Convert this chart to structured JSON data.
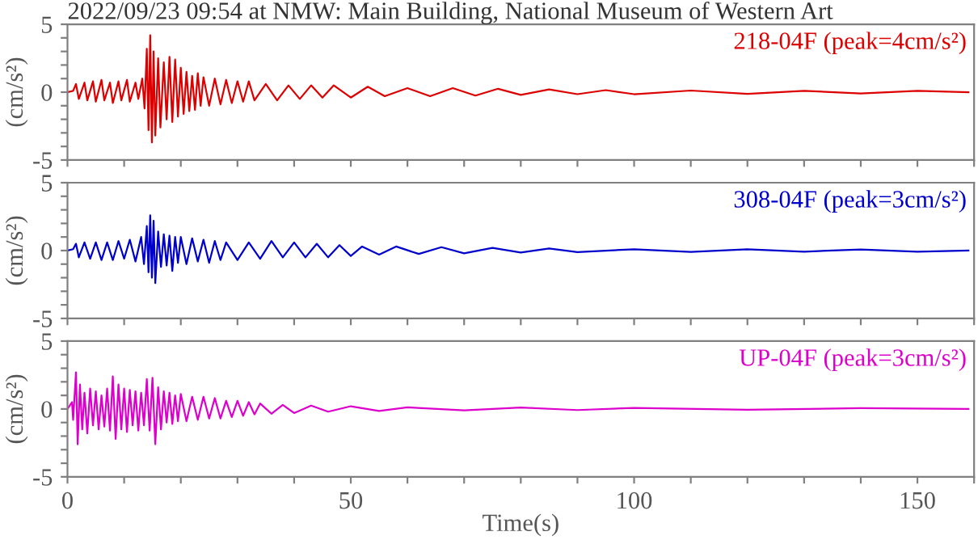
{
  "chart_data": [
    {
      "type": "line",
      "title": "2022/09/23 09:54 at NMW: Main Building, National Museum of Western Art",
      "ylabel": "(cm/s²)",
      "legend": "top right",
      "tick_labels": "y",
      "xlim": [
        0,
        160
      ],
      "ylim": [
        -5,
        5
      ],
      "xticks": [
        0,
        {
          "value": 10,
          "label": null
        },
        {
          "value": 20,
          "label": null
        },
        {
          "value": 30,
          "label": null
        },
        {
          "value": 40,
          "label": null
        },
        50,
        {
          "value": 60,
          "label": null
        },
        {
          "value": 70,
          "label": null
        },
        {
          "value": 80,
          "label": null
        },
        {
          "value": 90,
          "label": null
        },
        100,
        {
          "value": 110,
          "label": null
        },
        {
          "value": 120,
          "label": null
        },
        {
          "value": 130,
          "label": null
        },
        {
          "value": 140,
          "label": null
        },
        150,
        {
          "value": 160,
          "label": null
        }
      ],
      "yticks": [
        -5,
        {
          "value": -4,
          "label": null
        },
        {
          "value": -3,
          "label": null
        },
        {
          "value": -2,
          "label": null
        },
        {
          "value": -1,
          "label": null
        },
        0,
        {
          "value": 1,
          "label": null
        },
        {
          "value": 2,
          "label": null
        },
        {
          "value": 3,
          "label": null
        },
        {
          "value": 4,
          "label": null
        },
        5
      ],
      "series": [
        {
          "name": "218-04F (peak=4cm/s²)",
          "color": "#dd0000",
          "x": [
            0,
            1,
            1.5,
            2,
            3,
            3.5,
            4.5,
            5,
            6,
            6.5,
            7.5,
            8,
            9,
            9.5,
            10.5,
            11,
            12,
            12.5,
            13.2,
            13.6,
            14,
            14.3,
            14.6,
            14.9,
            15.2,
            15.5,
            16,
            16.4,
            17,
            17.5,
            18,
            18.5,
            19,
            19.5,
            20,
            20.5,
            21,
            21.5,
            22,
            22.5,
            23,
            23.5,
            24,
            25,
            26,
            27,
            28,
            29,
            30,
            31,
            32,
            33,
            35,
            37,
            39,
            41,
            43,
            45,
            47,
            50,
            53,
            56,
            60,
            64,
            68,
            72,
            76,
            80,
            85,
            90,
            95,
            100,
            110,
            120,
            130,
            140,
            150,
            159
          ],
          "values": [
            0,
            0.1,
            0.6,
            -0.5,
            0.7,
            -0.6,
            0.8,
            -0.7,
            0.9,
            -0.6,
            0.7,
            -0.8,
            0.8,
            -0.6,
            0.9,
            -0.7,
            0.7,
            -0.5,
            1.0,
            -1.2,
            3.2,
            -2.8,
            4.2,
            -3.7,
            3.0,
            -3.2,
            2.5,
            -2.6,
            2.2,
            -2.0,
            2.6,
            -2.2,
            2.4,
            -1.8,
            1.8,
            -1.6,
            1.5,
            -1.4,
            1.2,
            -1.3,
            1.4,
            -1.0,
            1.1,
            -1.0,
            1.0,
            -0.9,
            0.9,
            -0.8,
            0.8,
            -0.7,
            0.8,
            -0.6,
            0.6,
            -0.6,
            0.5,
            -0.5,
            0.5,
            -0.4,
            0.5,
            -0.4,
            0.4,
            -0.3,
            0.3,
            -0.3,
            0.3,
            -0.25,
            0.25,
            -0.2,
            0.2,
            -0.15,
            0.15,
            -0.15,
            0.12,
            -0.12,
            0.1,
            -0.1,
            0.1,
            0
          ]
        }
      ]
    },
    {
      "type": "line",
      "ylabel": "(cm/s²)",
      "legend": "top right",
      "tick_labels": "y",
      "xlim": [
        0,
        160
      ],
      "ylim": [
        -5,
        5
      ],
      "xticks": [
        0,
        {
          "value": 10,
          "label": null
        },
        {
          "value": 20,
          "label": null
        },
        {
          "value": 30,
          "label": null
        },
        {
          "value": 40,
          "label": null
        },
        50,
        {
          "value": 60,
          "label": null
        },
        {
          "value": 70,
          "label": null
        },
        {
          "value": 80,
          "label": null
        },
        {
          "value": 90,
          "label": null
        },
        100,
        {
          "value": 110,
          "label": null
        },
        {
          "value": 120,
          "label": null
        },
        {
          "value": 130,
          "label": null
        },
        {
          "value": 140,
          "label": null
        },
        150,
        {
          "value": 160,
          "label": null
        }
      ],
      "yticks": [
        -5,
        {
          "value": -4,
          "label": null
        },
        {
          "value": -3,
          "label": null
        },
        {
          "value": -2,
          "label": null
        },
        {
          "value": -1,
          "label": null
        },
        0,
        {
          "value": 1,
          "label": null
        },
        {
          "value": 2,
          "label": null
        },
        {
          "value": 3,
          "label": null
        },
        {
          "value": 4,
          "label": null
        },
        5
      ],
      "series": [
        {
          "name": "308-04F (peak=3cm/s²)",
          "color": "#0000cc",
          "x": [
            0,
            1,
            1.5,
            2,
            3,
            4,
            5,
            6,
            7,
            8,
            9,
            10,
            11,
            12,
            13,
            13.5,
            14,
            14.3,
            14.6,
            14.9,
            15.2,
            15.5,
            16,
            16.5,
            17,
            17.5,
            18,
            18.5,
            19,
            19.5,
            20,
            21,
            22,
            23,
            24,
            25,
            26,
            27,
            28,
            30,
            32,
            34,
            36,
            38,
            40,
            42,
            44,
            46,
            48,
            50,
            52,
            55,
            58,
            62,
            66,
            70,
            75,
            80,
            85,
            90,
            100,
            110,
            120,
            130,
            140,
            150,
            159
          ],
          "values": [
            0,
            0.1,
            0.5,
            -0.5,
            0.6,
            -0.6,
            0.6,
            -0.7,
            0.6,
            -0.7,
            0.7,
            -0.6,
            0.8,
            -0.8,
            1.0,
            -1.0,
            1.8,
            -1.6,
            2.6,
            -2.0,
            2.2,
            -2.4,
            1.4,
            -1.2,
            1.2,
            -1.1,
            1.1,
            -1.5,
            1.0,
            -0.9,
            1.0,
            -1.0,
            0.9,
            -0.8,
            0.8,
            -0.9,
            0.7,
            -0.7,
            0.6,
            -0.7,
            0.6,
            -0.6,
            0.7,
            -0.5,
            0.6,
            -0.5,
            0.5,
            -0.5,
            0.4,
            -0.4,
            0.3,
            -0.3,
            0.3,
            -0.25,
            0.25,
            -0.2,
            0.2,
            -0.15,
            0.15,
            -0.12,
            0.1,
            -0.1,
            0.1,
            -0.08,
            0.08,
            -0.08,
            0
          ]
        }
      ]
    },
    {
      "type": "line",
      "xlabel": "Time(s)",
      "ylabel": "(cm/s²)",
      "legend": "top right",
      "xlim": [
        0,
        160
      ],
      "ylim": [
        -5,
        5
      ],
      "xticks": [
        0,
        {
          "value": 10,
          "label": null
        },
        {
          "value": 20,
          "label": null
        },
        {
          "value": 30,
          "label": null
        },
        {
          "value": 40,
          "label": null
        },
        50,
        {
          "value": 60,
          "label": null
        },
        {
          "value": 70,
          "label": null
        },
        {
          "value": 80,
          "label": null
        },
        {
          "value": 90,
          "label": null
        },
        100,
        {
          "value": 110,
          "label": null
        },
        {
          "value": 120,
          "label": null
        },
        {
          "value": 130,
          "label": null
        },
        {
          "value": 140,
          "label": null
        },
        150,
        {
          "value": 160,
          "label": null
        }
      ],
      "yticks": [
        -5,
        {
          "value": -4,
          "label": null
        },
        {
          "value": -3,
          "label": null
        },
        {
          "value": -2,
          "label": null
        },
        {
          "value": -1,
          "label": null
        },
        0,
        {
          "value": 1,
          "label": null
        },
        {
          "value": 2,
          "label": null
        },
        {
          "value": 3,
          "label": null
        },
        {
          "value": 4,
          "label": null
        },
        5
      ],
      "series": [
        {
          "name": "UP-04F (peak=3cm/s²)",
          "color": "#dd00cc",
          "x": [
            0,
            0.8,
            1,
            1.5,
            1.8,
            2.2,
            2.6,
            3,
            3.5,
            4,
            4.5,
            5,
            5.5,
            6,
            6.5,
            7,
            7.5,
            8,
            8.5,
            9,
            9.5,
            10,
            10.5,
            11,
            11.5,
            12,
            12.5,
            13,
            13.5,
            14,
            14.5,
            15,
            15.5,
            16,
            16.5,
            17,
            17.5,
            18,
            18.5,
            19,
            19.5,
            20,
            21,
            22,
            23,
            24,
            25,
            26,
            27,
            28,
            29,
            30,
            31,
            32,
            33,
            34,
            36,
            38,
            40,
            43,
            46,
            50,
            55,
            60,
            70,
            80,
            90,
            100,
            120,
            140,
            159
          ],
          "values": [
            0,
            0.5,
            -0.8,
            2.7,
            -2.6,
            1.8,
            -1.5,
            1.2,
            -1.8,
            1.5,
            -1.2,
            1.3,
            -1.5,
            1.0,
            -1.3,
            1.5,
            -1.6,
            2.4,
            -2.2,
            1.8,
            -1.5,
            1.5,
            -1.7,
            1.4,
            -1.2,
            1.3,
            -1.6,
            1.2,
            -1.2,
            2.2,
            -1.6,
            2.3,
            -2.6,
            1.6,
            -1.5,
            1.3,
            -1.0,
            1.2,
            -1.1,
            1.0,
            -0.9,
            1.1,
            -0.9,
            0.9,
            -0.8,
            0.9,
            -0.7,
            0.8,
            -0.7,
            0.6,
            -0.6,
            0.6,
            -0.5,
            0.5,
            -0.4,
            0.4,
            -0.35,
            0.3,
            -0.3,
            0.25,
            -0.2,
            0.2,
            -0.15,
            0.12,
            -0.1,
            0.1,
            -0.08,
            0.08,
            -0.06,
            0.06,
            0
          ]
        }
      ]
    }
  ]
}
